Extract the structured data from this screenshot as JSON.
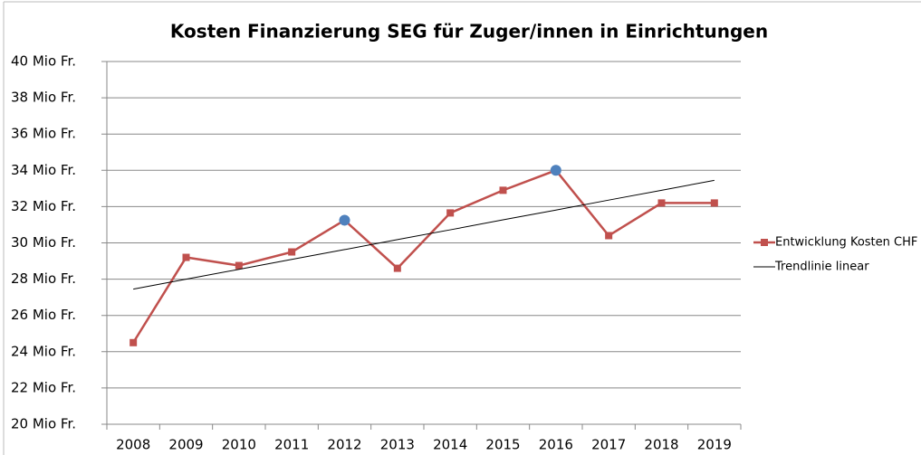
{
  "chart_data": {
    "type": "line",
    "title": "Kosten Finanzierung SEG für Zuger/innen in Einrichtungen",
    "categories": [
      "2008",
      "2009",
      "2010",
      "2011",
      "2012",
      "2013",
      "2014",
      "2015",
      "2016",
      "2017",
      "2018",
      "2019"
    ],
    "series": [
      {
        "name": "Entwicklung Kosten CHF",
        "color": "#c0504d",
        "marker": "square",
        "values": [
          24.5,
          29.2,
          28.75,
          29.5,
          31.25,
          28.6,
          31.65,
          32.9,
          34.0,
          30.4,
          32.2,
          32.2
        ]
      },
      {
        "name": "Trendlinie linear",
        "color": "#000000",
        "marker": "none",
        "values": [
          27.45,
          28.0,
          28.54,
          29.09,
          29.63,
          30.18,
          30.72,
          31.27,
          31.81,
          32.36,
          32.9,
          33.45
        ]
      }
    ],
    "highlight": {
      "series": 0,
      "indices": [
        4,
        8
      ],
      "color": "#4f81bd"
    },
    "ylim": [
      20,
      40
    ],
    "yticks": [
      {
        "value": 20,
        "label": "20 Mio Fr."
      },
      {
        "value": 22,
        "label": "22 Mio Fr."
      },
      {
        "value": 24,
        "label": "24 Mio Fr."
      },
      {
        "value": 26,
        "label": "26 Mio Fr."
      },
      {
        "value": 28,
        "label": "28 Mio Fr."
      },
      {
        "value": 30,
        "label": "30 Mio Fr."
      },
      {
        "value": 32,
        "label": "32 Mio Fr."
      },
      {
        "value": 34,
        "label": "34 Mio Fr."
      },
      {
        "value": 36,
        "label": "36 Mio Fr."
      },
      {
        "value": 38,
        "label": "38 Mio Fr."
      },
      {
        "value": 40,
        "label": "40 Mio Fr."
      }
    ],
    "grid": true,
    "legend": "right"
  }
}
